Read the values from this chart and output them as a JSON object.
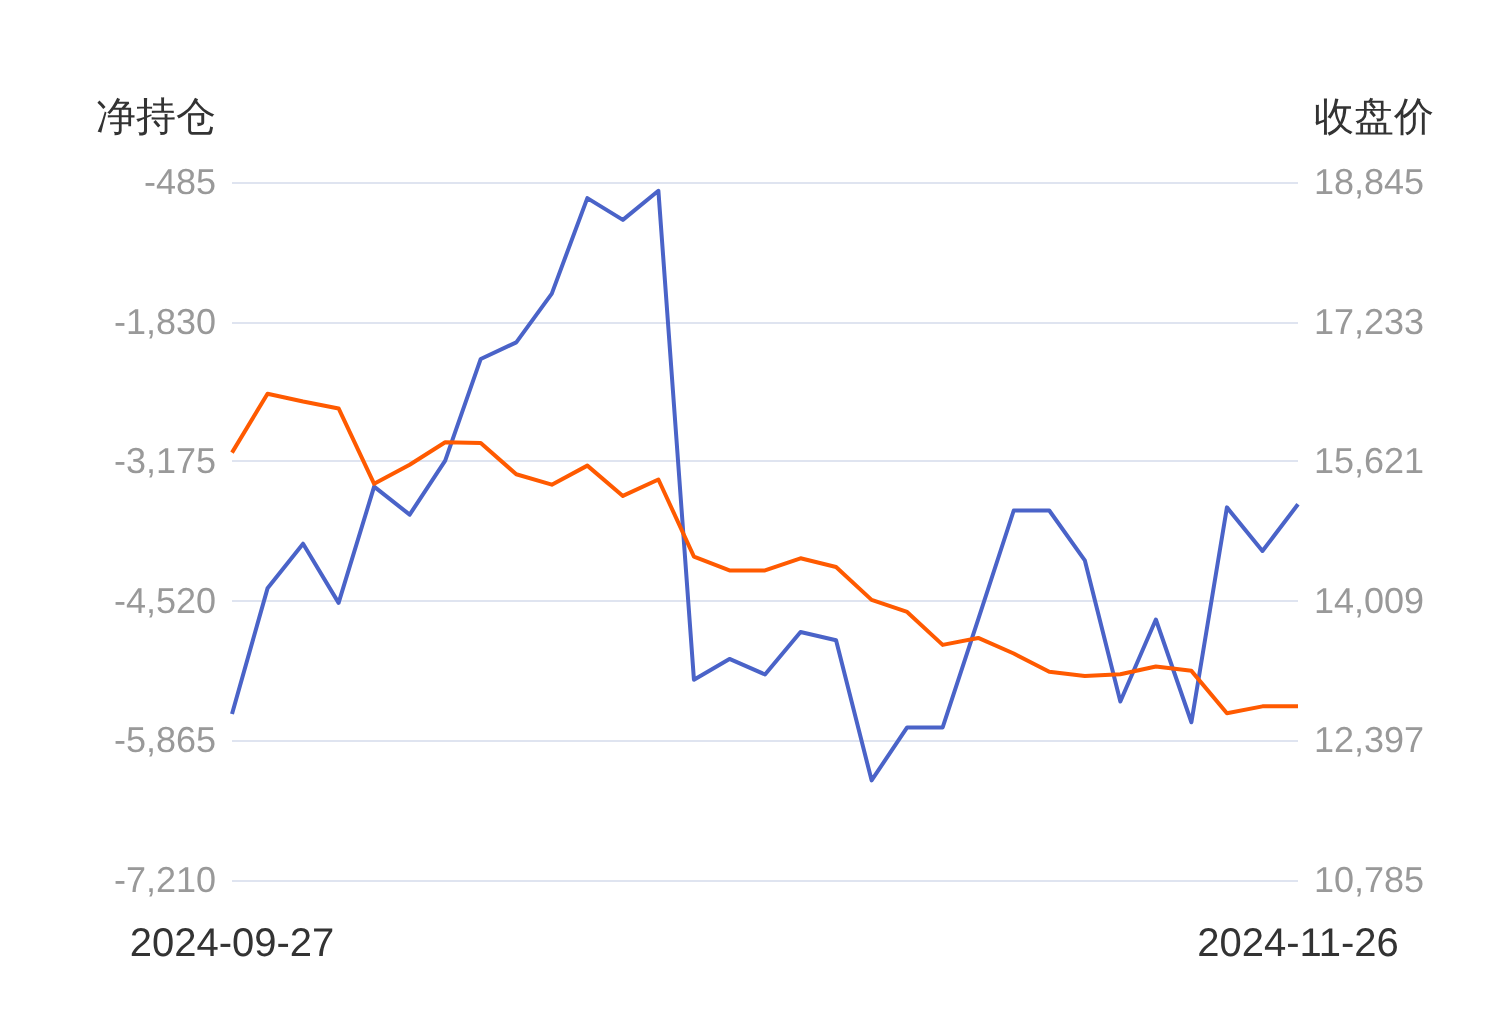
{
  "chart_data": {
    "type": "line",
    "ylabel": "净持仓",
    "y2label": "收盘价",
    "categories": [
      "2024-09-27",
      null,
      null,
      null,
      null,
      null,
      null,
      null,
      null,
      null,
      null,
      null,
      null,
      null,
      null,
      null,
      null,
      null,
      null,
      null,
      null,
      null,
      null,
      null,
      null,
      null,
      null,
      null,
      null,
      null,
      "2024-11-26"
    ],
    "series": [
      {
        "color": "#4a63c8",
        "values": [
          -5610,
          -4400,
          -3970,
          -4540,
          -3420,
          -3690,
          -3170,
          -2190,
          -2030,
          -1560,
          -640,
          -850,
          -570,
          -5280,
          -5080,
          -5230,
          -4820,
          -4900,
          -6250,
          -5740,
          -5740,
          -4700,
          -3650,
          -3650,
          -4130,
          -5490,
          -4700,
          -5690,
          -3620,
          -4040,
          -3590
        ]
      },
      {
        "color": "#ff5a00",
        "axis": "y2",
        "values": [
          15720,
          16400,
          16310,
          16230,
          15360,
          15580,
          15840,
          15830,
          15470,
          15350,
          15570,
          15220,
          15410,
          14520,
          14360,
          14360,
          14500,
          14400,
          14020,
          13880,
          13500,
          13580,
          13400,
          13190,
          13140,
          13160,
          13250,
          13200,
          12710,
          12790,
          12790
        ]
      }
    ],
    "ylim": [
      -7210,
      -485
    ],
    "yticks": [
      {
        "value": -7210,
        "label": "-7,210"
      },
      {
        "value": -5865,
        "label": "-5,865"
      },
      {
        "value": -4520,
        "label": "-4,520"
      },
      {
        "value": -3175,
        "label": "-3,175"
      },
      {
        "value": -1830,
        "label": "-1,830"
      },
      {
        "value": -485,
        "label": "-485"
      }
    ],
    "y2lim": [
      10785,
      18845
    ],
    "y2ticks": [
      {
        "value": 10785,
        "label": "10,785"
      },
      {
        "value": 12397,
        "label": "12,397"
      },
      {
        "value": 14009,
        "label": "14,009"
      },
      {
        "value": 15621,
        "label": "15,621"
      },
      {
        "value": 17233,
        "label": "17,233"
      },
      {
        "value": 18845,
        "label": "18,845"
      }
    ],
    "grid": "y",
    "marker": "none",
    "line_style": "solid"
  }
}
